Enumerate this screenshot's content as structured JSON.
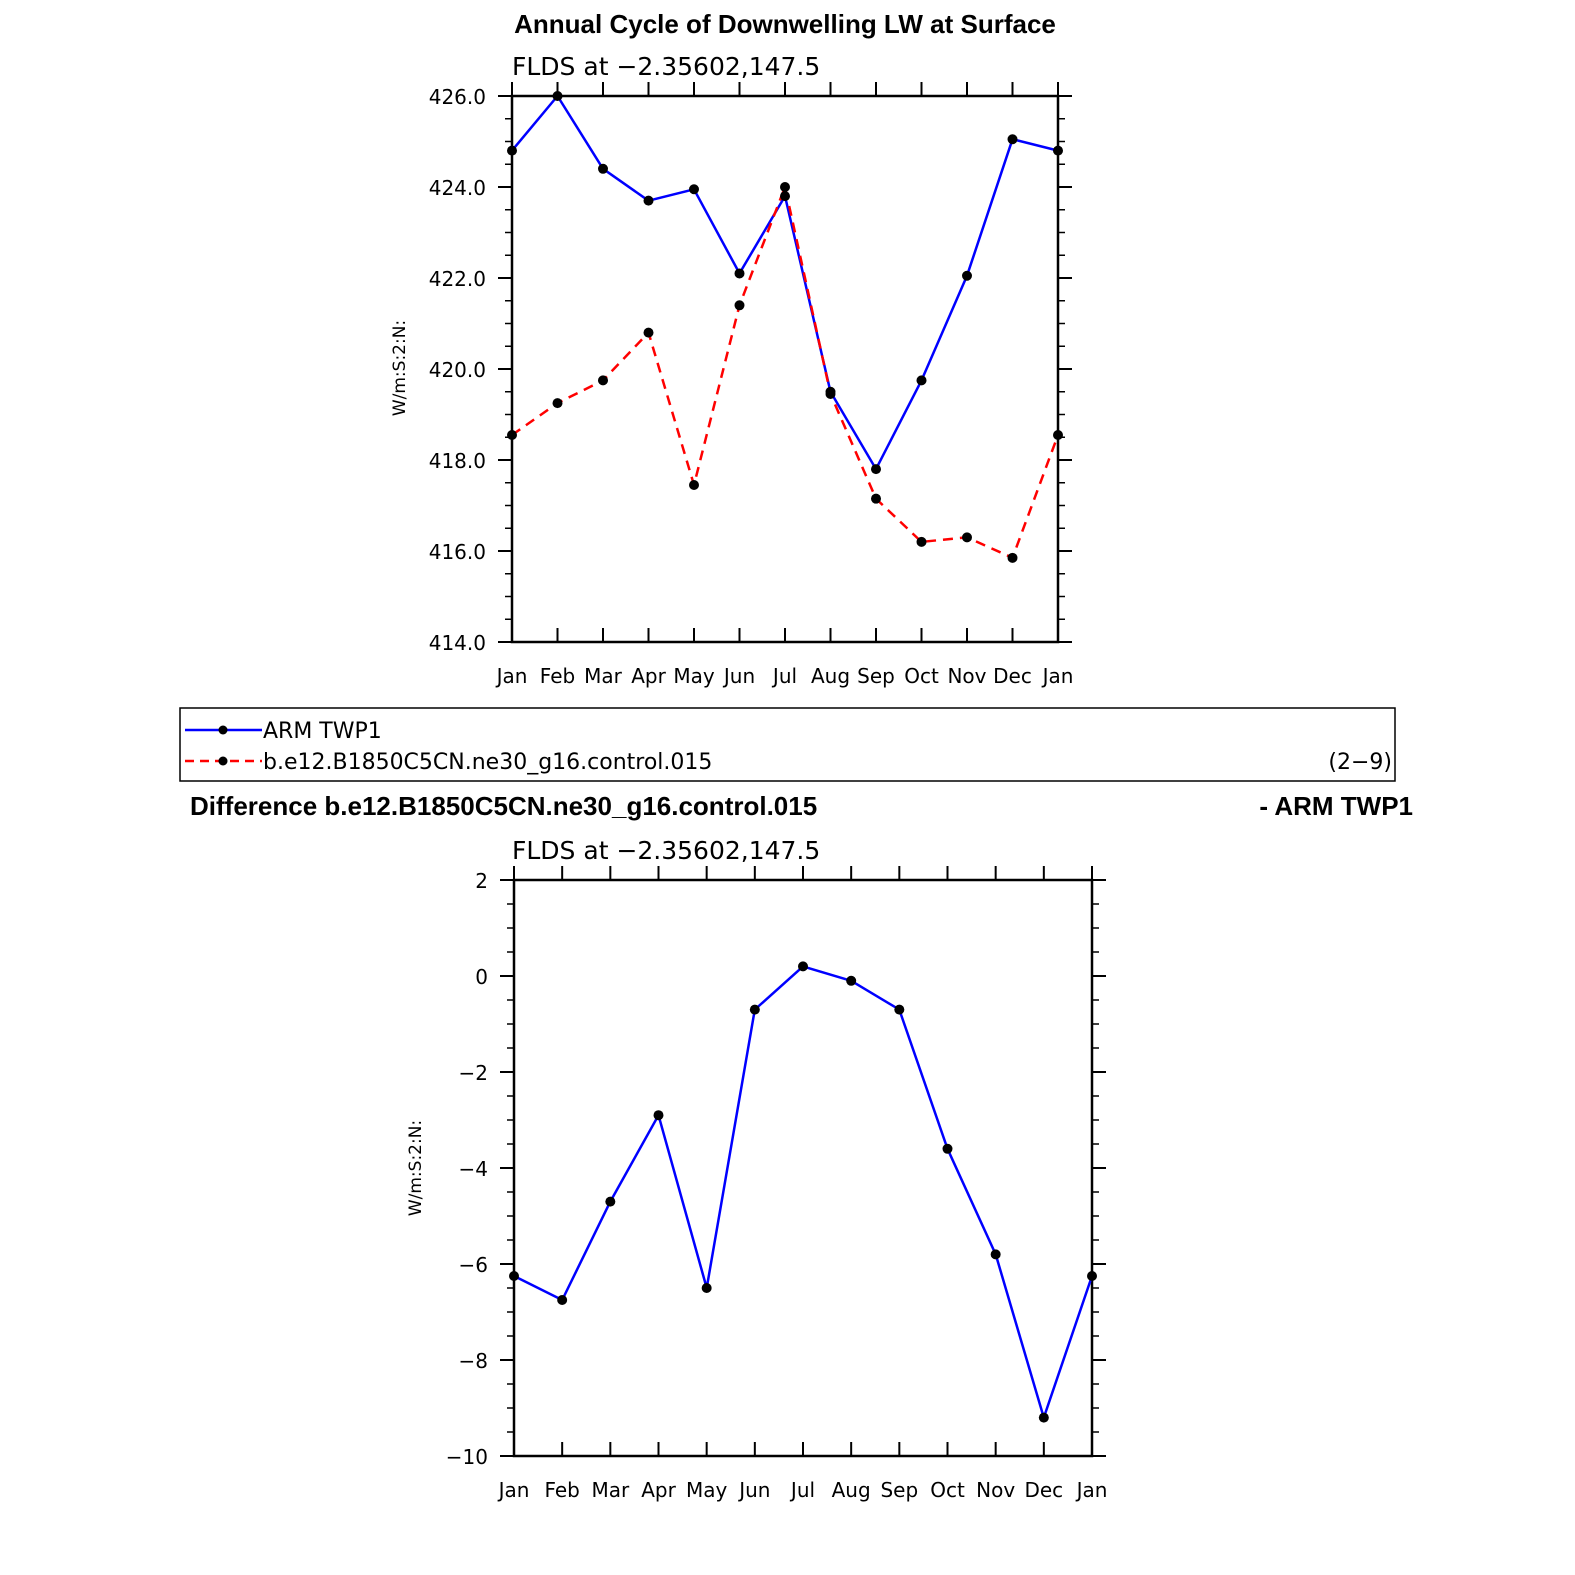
{
  "chart_data": [
    {
      "type": "line",
      "title": "Annual Cycle of Downwelling LW at Surface",
      "subtitle": "FLDS at −2.35602,147.5",
      "ylabel": "W/m:S:2:N:",
      "xlabel": "",
      "categories": [
        "Jan",
        "Feb",
        "Mar",
        "Apr",
        "May",
        "Jun",
        "Jul",
        "Aug",
        "Sep",
        "Oct",
        "Nov",
        "Dec",
        "Jan"
      ],
      "yticks": [
        "414.0",
        "416.0",
        "418.0",
        "420.0",
        "422.0",
        "424.0",
        "426.0"
      ],
      "ylim": [
        414,
        426
      ],
      "series": [
        {
          "name": "ARM  TWP1",
          "color": "#0000ff",
          "dash": "solid",
          "values": [
            424.8,
            426.0,
            424.4,
            423.7,
            423.95,
            422.1,
            423.8,
            419.5,
            417.8,
            419.75,
            422.05,
            425.05,
            424.8
          ]
        },
        {
          "name": "b.e12.B1850C5CN.ne30_g16.control.015",
          "color": "#ff0000",
          "dash": "dashed",
          "values": [
            418.55,
            419.25,
            419.75,
            420.8,
            417.45,
            421.4,
            424.0,
            419.45,
            417.15,
            416.2,
            416.3,
            415.85,
            418.55
          ]
        }
      ],
      "legend": {
        "position": "below",
        "note": "(2−9)"
      }
    },
    {
      "type": "line",
      "title_left": "Difference b.e12.B1850C5CN.ne30_g16.control.015",
      "title_right": "- ARM TWP1",
      "subtitle": "FLDS at −2.35602,147.5",
      "ylabel": "W/m:S:2:N:",
      "xlabel": "",
      "categories": [
        "Jan",
        "Feb",
        "Mar",
        "Apr",
        "May",
        "Jun",
        "Jul",
        "Aug",
        "Sep",
        "Oct",
        "Nov",
        "Dec",
        "Jan"
      ],
      "yticks": [
        "−10",
        "−8",
        "−6",
        "−4",
        "−2",
        "0",
        "2"
      ],
      "ylim": [
        -10,
        2
      ],
      "series": [
        {
          "color": "#0000ff",
          "dash": "solid",
          "values": [
            -6.25,
            -6.75,
            -4.7,
            -2.9,
            -6.5,
            -0.7,
            0.2,
            -0.1,
            -0.7,
            -3.6,
            -5.8,
            -9.2,
            -6.25
          ]
        }
      ]
    }
  ]
}
